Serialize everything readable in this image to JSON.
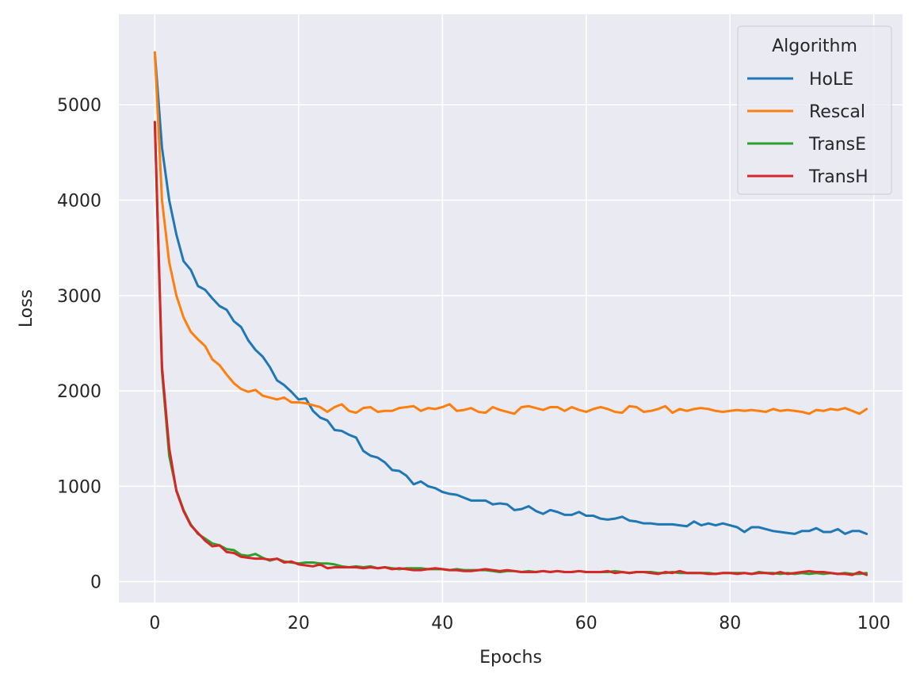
{
  "chart_data": {
    "type": "line",
    "xlabel": "Epochs",
    "ylabel": "Loss",
    "xlim": [
      -5,
      104
    ],
    "ylim": [
      -220,
      5950
    ],
    "xticks": [
      0,
      20,
      40,
      60,
      80,
      100
    ],
    "yticks": [
      0,
      1000,
      2000,
      3000,
      4000,
      5000
    ],
    "grid": true,
    "legend": {
      "title": "Algorithm",
      "placement": "top-right"
    },
    "x": [
      0,
      1,
      2,
      3,
      4,
      5,
      6,
      7,
      8,
      9,
      10,
      11,
      12,
      13,
      14,
      15,
      16,
      17,
      18,
      19,
      20,
      21,
      22,
      23,
      24,
      25,
      26,
      27,
      28,
      29,
      30,
      31,
      32,
      33,
      34,
      35,
      36,
      37,
      38,
      39,
      40,
      41,
      42,
      43,
      44,
      45,
      46,
      47,
      48,
      49,
      50,
      51,
      52,
      53,
      54,
      55,
      56,
      57,
      58,
      59,
      60,
      61,
      62,
      63,
      64,
      65,
      66,
      67,
      68,
      69,
      70,
      71,
      72,
      73,
      74,
      75,
      76,
      77,
      78,
      79,
      80,
      81,
      82,
      83,
      84,
      85,
      86,
      87,
      88,
      89,
      90,
      91,
      92,
      93,
      94,
      95,
      96,
      97,
      98,
      99
    ],
    "series": [
      {
        "name": "HoLE",
        "color": "#1f77b4",
        "values": [
          5550,
          4550,
          4000,
          3640,
          3360,
          3270,
          3100,
          3060,
          2970,
          2890,
          2850,
          2730,
          2670,
          2530,
          2430,
          2360,
          2250,
          2110,
          2060,
          1990,
          1910,
          1920,
          1790,
          1720,
          1690,
          1590,
          1580,
          1540,
          1510,
          1370,
          1320,
          1300,
          1250,
          1170,
          1160,
          1110,
          1020,
          1050,
          1000,
          980,
          940,
          920,
          910,
          880,
          850,
          850,
          850,
          810,
          820,
          810,
          750,
          760,
          790,
          740,
          710,
          750,
          730,
          700,
          700,
          730,
          690,
          690,
          660,
          650,
          660,
          680,
          640,
          630,
          610,
          610,
          600,
          600,
          600,
          590,
          580,
          630,
          590,
          610,
          590,
          610,
          590,
          570,
          520,
          570,
          570,
          550,
          530,
          520,
          510,
          500,
          530,
          530,
          560,
          520,
          520,
          550,
          500,
          530,
          530,
          500
        ]
      },
      {
        "name": "Rescal",
        "color": "#ff7f0e",
        "values": [
          5550,
          4000,
          3350,
          3000,
          2770,
          2620,
          2540,
          2470,
          2330,
          2270,
          2170,
          2080,
          2020,
          1990,
          2010,
          1950,
          1930,
          1910,
          1930,
          1880,
          1880,
          1870,
          1850,
          1830,
          1780,
          1830,
          1860,
          1790,
          1770,
          1820,
          1830,
          1780,
          1790,
          1790,
          1820,
          1830,
          1840,
          1790,
          1820,
          1810,
          1830,
          1860,
          1790,
          1800,
          1820,
          1780,
          1770,
          1830,
          1800,
          1780,
          1760,
          1830,
          1840,
          1820,
          1800,
          1830,
          1830,
          1790,
          1830,
          1800,
          1780,
          1810,
          1830,
          1810,
          1780,
          1770,
          1840,
          1830,
          1780,
          1790,
          1810,
          1840,
          1770,
          1810,
          1790,
          1810,
          1820,
          1810,
          1790,
          1780,
          1790,
          1800,
          1790,
          1800,
          1790,
          1780,
          1810,
          1790,
          1800,
          1790,
          1780,
          1760,
          1800,
          1790,
          1810,
          1800,
          1820,
          1790,
          1760,
          1810
        ]
      },
      {
        "name": "TransE",
        "color": "#2ca02c",
        "values": [
          4820,
          2200,
          1320,
          960,
          750,
          600,
          500,
          450,
          400,
          380,
          340,
          330,
          280,
          270,
          290,
          250,
          220,
          240,
          210,
          200,
          190,
          200,
          200,
          190,
          190,
          180,
          160,
          150,
          160,
          150,
          160,
          140,
          150,
          140,
          130,
          140,
          140,
          140,
          130,
          130,
          130,
          120,
          130,
          120,
          120,
          120,
          120,
          110,
          100,
          110,
          110,
          100,
          110,
          100,
          110,
          100,
          110,
          100,
          100,
          110,
          100,
          100,
          100,
          100,
          110,
          100,
          90,
          100,
          100,
          100,
          90,
          90,
          100,
          90,
          90,
          90,
          90,
          90,
          80,
          90,
          90,
          90,
          90,
          80,
          100,
          90,
          90,
          80,
          90,
          80,
          90,
          80,
          90,
          80,
          90,
          80,
          90,
          80,
          80,
          90
        ]
      },
      {
        "name": "TransH",
        "color": "#d62728",
        "values": [
          4820,
          2250,
          1400,
          950,
          740,
          590,
          510,
          430,
          370,
          380,
          310,
          300,
          260,
          250,
          240,
          240,
          230,
          240,
          200,
          210,
          180,
          170,
          160,
          180,
          140,
          150,
          150,
          150,
          150,
          140,
          150,
          140,
          150,
          130,
          140,
          130,
          120,
          120,
          130,
          140,
          130,
          120,
          120,
          110,
          110,
          120,
          130,
          120,
          110,
          120,
          110,
          100,
          100,
          100,
          110,
          100,
          110,
          100,
          100,
          110,
          100,
          100,
          100,
          110,
          90,
          100,
          90,
          100,
          100,
          90,
          80,
          100,
          90,
          110,
          90,
          90,
          90,
          80,
          80,
          90,
          90,
          80,
          90,
          80,
          90,
          90,
          80,
          100,
          80,
          90,
          100,
          110,
          100,
          100,
          90,
          80,
          80,
          70,
          100,
          70
        ]
      }
    ]
  }
}
